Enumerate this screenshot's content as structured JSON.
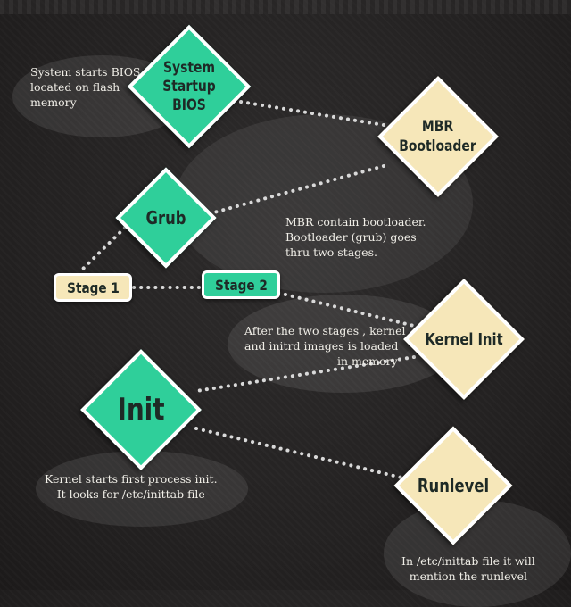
{
  "nodes": {
    "bios": {
      "label_line1": "System Startup",
      "label_line2": "BIOS"
    },
    "mbr": {
      "label_line1": "MBR",
      "label_line2": "Bootloader"
    },
    "grub": {
      "label": "Grub"
    },
    "stage1": {
      "label": "Stage 1"
    },
    "stage2": {
      "label": "Stage 2"
    },
    "kernel_init": {
      "label": "Kernel Init"
    },
    "init": {
      "label": "Init"
    },
    "runlevel": {
      "label": "Runlevel"
    }
  },
  "notes": {
    "bios": [
      "System starts BIOS",
      "located on flash",
      "memory"
    ],
    "mbr": [
      "MBR contain bootloader.",
      "Bootloader (grub) goes",
      "thru two stages."
    ],
    "kernel": [
      "After the two stages , kernel",
      "and initrd images is loaded",
      "in memory"
    ],
    "init": [
      "Kernel starts first process init.",
      "It looks for /etc/inittab file"
    ],
    "runlevel": [
      "In /etc/inittab file it will",
      "mention the runlevel"
    ]
  },
  "colors": {
    "green": "#2fcf9a",
    "cream": "#f6e7b9",
    "background": "#262424",
    "connector": "#d9d9d9"
  }
}
